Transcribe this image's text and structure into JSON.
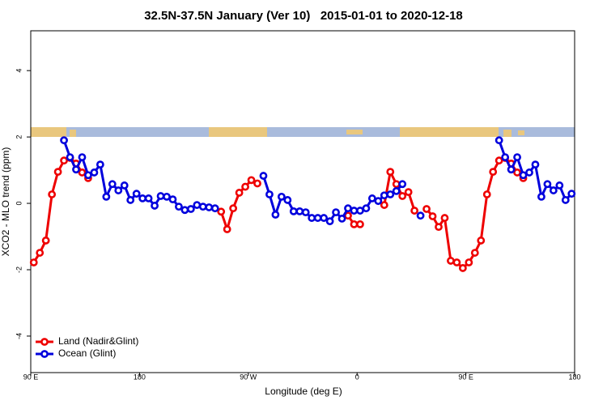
{
  "chart_data": {
    "type": "line",
    "title": "32.5N-37.5N January (Ver 10)   2015-01-01 to 2020-12-18",
    "x_label": "Longitude (deg E)",
    "y_label": "XCO2 - MLO trend (ppm)",
    "x": [
      92.5,
      97.5,
      102.5,
      107.5,
      112.5,
      117.5,
      122.5,
      127.5,
      132.5,
      137.5,
      142.5,
      147.5,
      152.5,
      157.5,
      162.5,
      167.5,
      172.5,
      177.5,
      182.5,
      187.5,
      192.5,
      197.5,
      202.5,
      207.5,
      212.5,
      217.5,
      222.5,
      227.5,
      232.5,
      237.5,
      242.5,
      247.5,
      252.5,
      257.5,
      262.5,
      267.5,
      272.5,
      277.5,
      282.5,
      287.5,
      292.5,
      297.5,
      302.5,
      307.5,
      312.5,
      317.5,
      322.5,
      327.5,
      332.5,
      337.5,
      342.5,
      347.5,
      352.5,
      357.5,
      362.5,
      367.5,
      372.5,
      377.5,
      382.5,
      387.5,
      392.5,
      397.5,
      402.5,
      407.5,
      412.5,
      417.5,
      422.5,
      427.5,
      432.5,
      437.5,
      442.5,
      447.5,
      452.5,
      457.5,
      462.5,
      467.5,
      472.5,
      477.5,
      482.5,
      487.5,
      492.5,
      497.5,
      502.5,
      507.5,
      512.5,
      517.5,
      522.5,
      527.5,
      532.5,
      537.5
    ],
    "series": [
      {
        "name": "Land (Nadir&Glint)",
        "color": "#ee0000",
        "values": [
          -1.78,
          -1.49,
          -1.12,
          0.27,
          0.95,
          1.29,
          1.37,
          1.2,
          0.93,
          0.76,
          null,
          null,
          null,
          null,
          null,
          null,
          null,
          null,
          null,
          null,
          null,
          null,
          null,
          null,
          null,
          null,
          null,
          null,
          null,
          null,
          null,
          -0.25,
          -0.78,
          -0.15,
          0.32,
          0.5,
          0.7,
          0.6,
          null,
          null,
          null,
          null,
          null,
          null,
          null,
          null,
          null,
          null,
          null,
          null,
          null,
          null,
          -0.37,
          -0.63,
          -0.63,
          null,
          null,
          null,
          -0.05,
          0.95,
          0.58,
          0.22,
          0.34,
          -0.22,
          null,
          -0.17,
          -0.39,
          -0.71,
          -0.44,
          -1.73,
          -1.78,
          -1.95,
          -1.78,
          -1.49,
          -1.12,
          0.27,
          0.95,
          1.29,
          1.37,
          1.2,
          0.93,
          0.76,
          null,
          null,
          null,
          null,
          null,
          null,
          null,
          null
        ]
      },
      {
        "name": "Ocean (Glint)",
        "color": "#0000dd",
        "values": [
          null,
          null,
          null,
          null,
          null,
          1.9,
          1.39,
          1.02,
          1.39,
          0.85,
          0.93,
          1.17,
          0.2,
          0.58,
          0.39,
          0.54,
          0.1,
          0.29,
          0.15,
          0.15,
          -0.07,
          0.22,
          0.2,
          0.12,
          -0.1,
          -0.2,
          -0.17,
          -0.05,
          -0.1,
          -0.12,
          -0.15,
          null,
          null,
          null,
          null,
          null,
          null,
          null,
          0.83,
          0.27,
          -0.34,
          0.2,
          0.1,
          -0.24,
          -0.24,
          -0.27,
          -0.44,
          -0.44,
          -0.44,
          -0.54,
          -0.27,
          -0.46,
          -0.15,
          -0.22,
          -0.22,
          -0.15,
          0.15,
          0.07,
          0.24,
          0.27,
          0.37,
          0.58,
          null,
          null,
          -0.37,
          null,
          null,
          null,
          null,
          null,
          null,
          null,
          null,
          null,
          null,
          null,
          null,
          1.9,
          1.39,
          1.02,
          1.39,
          0.85,
          0.93,
          1.17,
          0.2,
          0.58,
          0.39,
          0.54,
          0.1,
          0.29
        ]
      }
    ],
    "xlim": [
      90,
      540
    ],
    "xticks": [
      {
        "value": 90,
        "label": "90 E"
      },
      {
        "value": 180,
        "label": "180"
      },
      {
        "value": 270,
        "label": "90 W"
      },
      {
        "value": 360,
        "label": "0"
      },
      {
        "value": 450,
        "label": "90 E"
      },
      {
        "value": 540,
        "label": "180"
      }
    ],
    "ylim": [
      -5.1,
      5.2
    ],
    "yticks": [
      -4,
      -2,
      0,
      2,
      4
    ],
    "legend": "bottom-left"
  }
}
